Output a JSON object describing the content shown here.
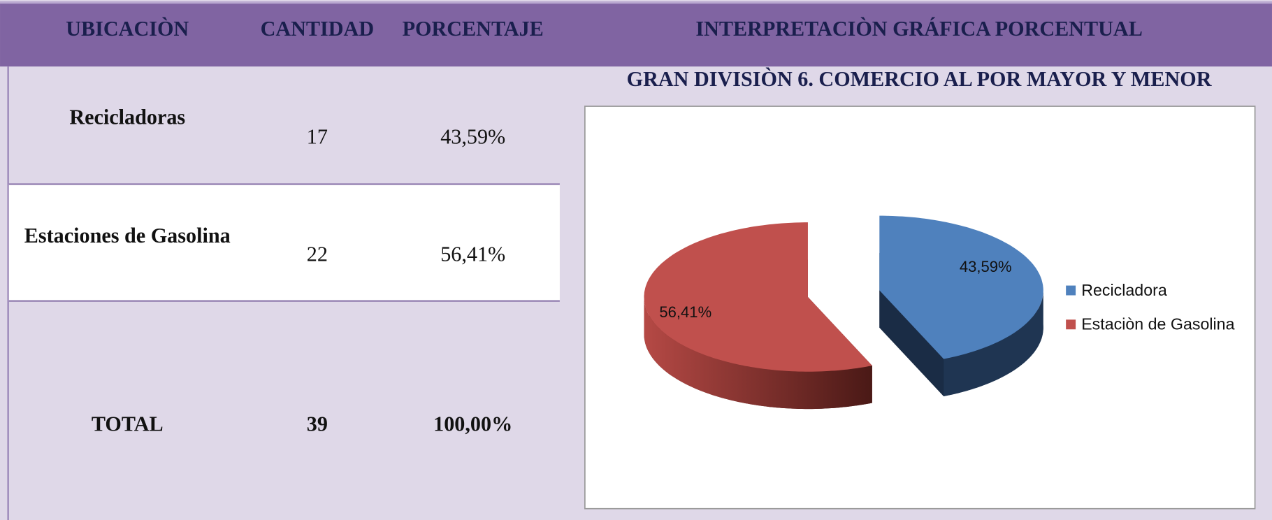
{
  "table": {
    "headers": [
      "UBICACIÒN",
      "CANTIDAD",
      "PORCENTAJE",
      "INTERPRETACIÒN GRÁFICA PORCENTUAL"
    ],
    "rows": [
      [
        "Recicladoras",
        17,
        "43,59%"
      ],
      [
        "Estaciones de Gasolina",
        22,
        "56,41%"
      ]
    ],
    "total": [
      "TOTAL",
      39,
      "100,00%"
    ]
  },
  "chart_data": {
    "type": "pie",
    "title": "GRAN DIVISIÒN 6.  COMERCIO AL POR MAYOR Y MENOR",
    "categories": [
      "Recicladora",
      "Estaciòn de Gasolina"
    ],
    "values": [
      43.59,
      56.41
    ],
    "value_labels": [
      "43,59%",
      "56,41%"
    ],
    "colors": [
      "#4f81bd",
      "#c0504d"
    ],
    "legend": "right"
  }
}
